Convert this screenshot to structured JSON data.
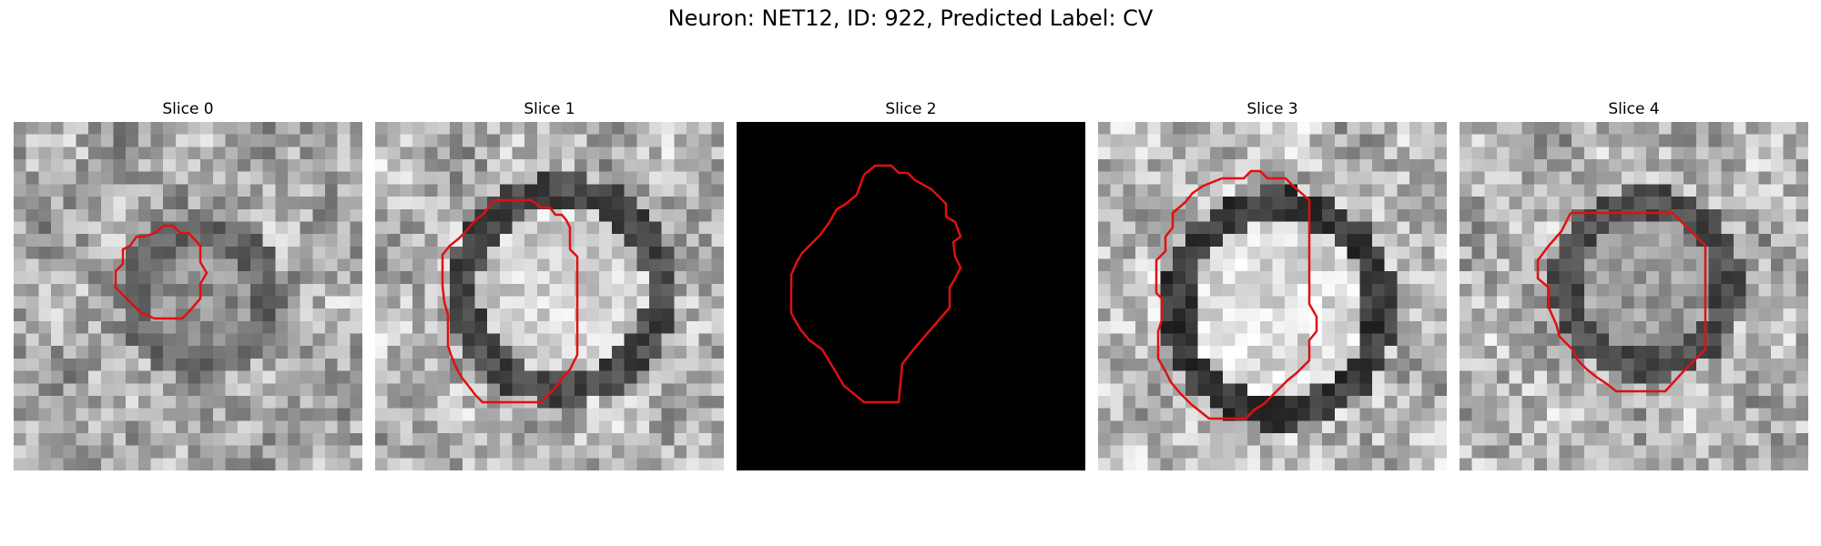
{
  "title": "Neuron: NET12, ID: 922, Predicted Label: CV",
  "contour_color": "#e01010",
  "panels": [
    {
      "label": "Slice 0",
      "image": "grayscale-microscopy-slice",
      "grid": 28,
      "seed": 11,
      "blank": false,
      "background_level": 0.66,
      "cell": {
        "cx": 14.5,
        "cy": 13.5,
        "r": 5.2,
        "rim": 0.4,
        "interior": 0.56
      }
    },
    {
      "label": "Slice 1",
      "image": "grayscale-microscopy-slice",
      "grid": 28,
      "seed": 23,
      "blank": false,
      "background_level": 0.7,
      "cell": {
        "cx": 14.5,
        "cy": 13.0,
        "r": 7.8,
        "rim": 0.28,
        "interior": 0.82
      }
    },
    {
      "label": "Slice 2",
      "image": "black-slice",
      "grid": 28,
      "seed": 37,
      "blank": true,
      "background_level": 0.0,
      "cell": null
    },
    {
      "label": "Slice 3",
      "image": "grayscale-microscopy-slice",
      "grid": 28,
      "seed": 41,
      "blank": false,
      "background_level": 0.72,
      "cell": {
        "cx": 14.0,
        "cy": 14.5,
        "r": 8.2,
        "rim": 0.22,
        "interior": 0.86
      }
    },
    {
      "label": "Slice 4",
      "image": "grayscale-microscopy-slice",
      "grid": 28,
      "seed": 53,
      "blank": false,
      "background_level": 0.7,
      "cell": {
        "cx": 14.5,
        "cy": 12.5,
        "r": 6.5,
        "rim": 0.3,
        "interior": 0.6
      }
    }
  ]
}
